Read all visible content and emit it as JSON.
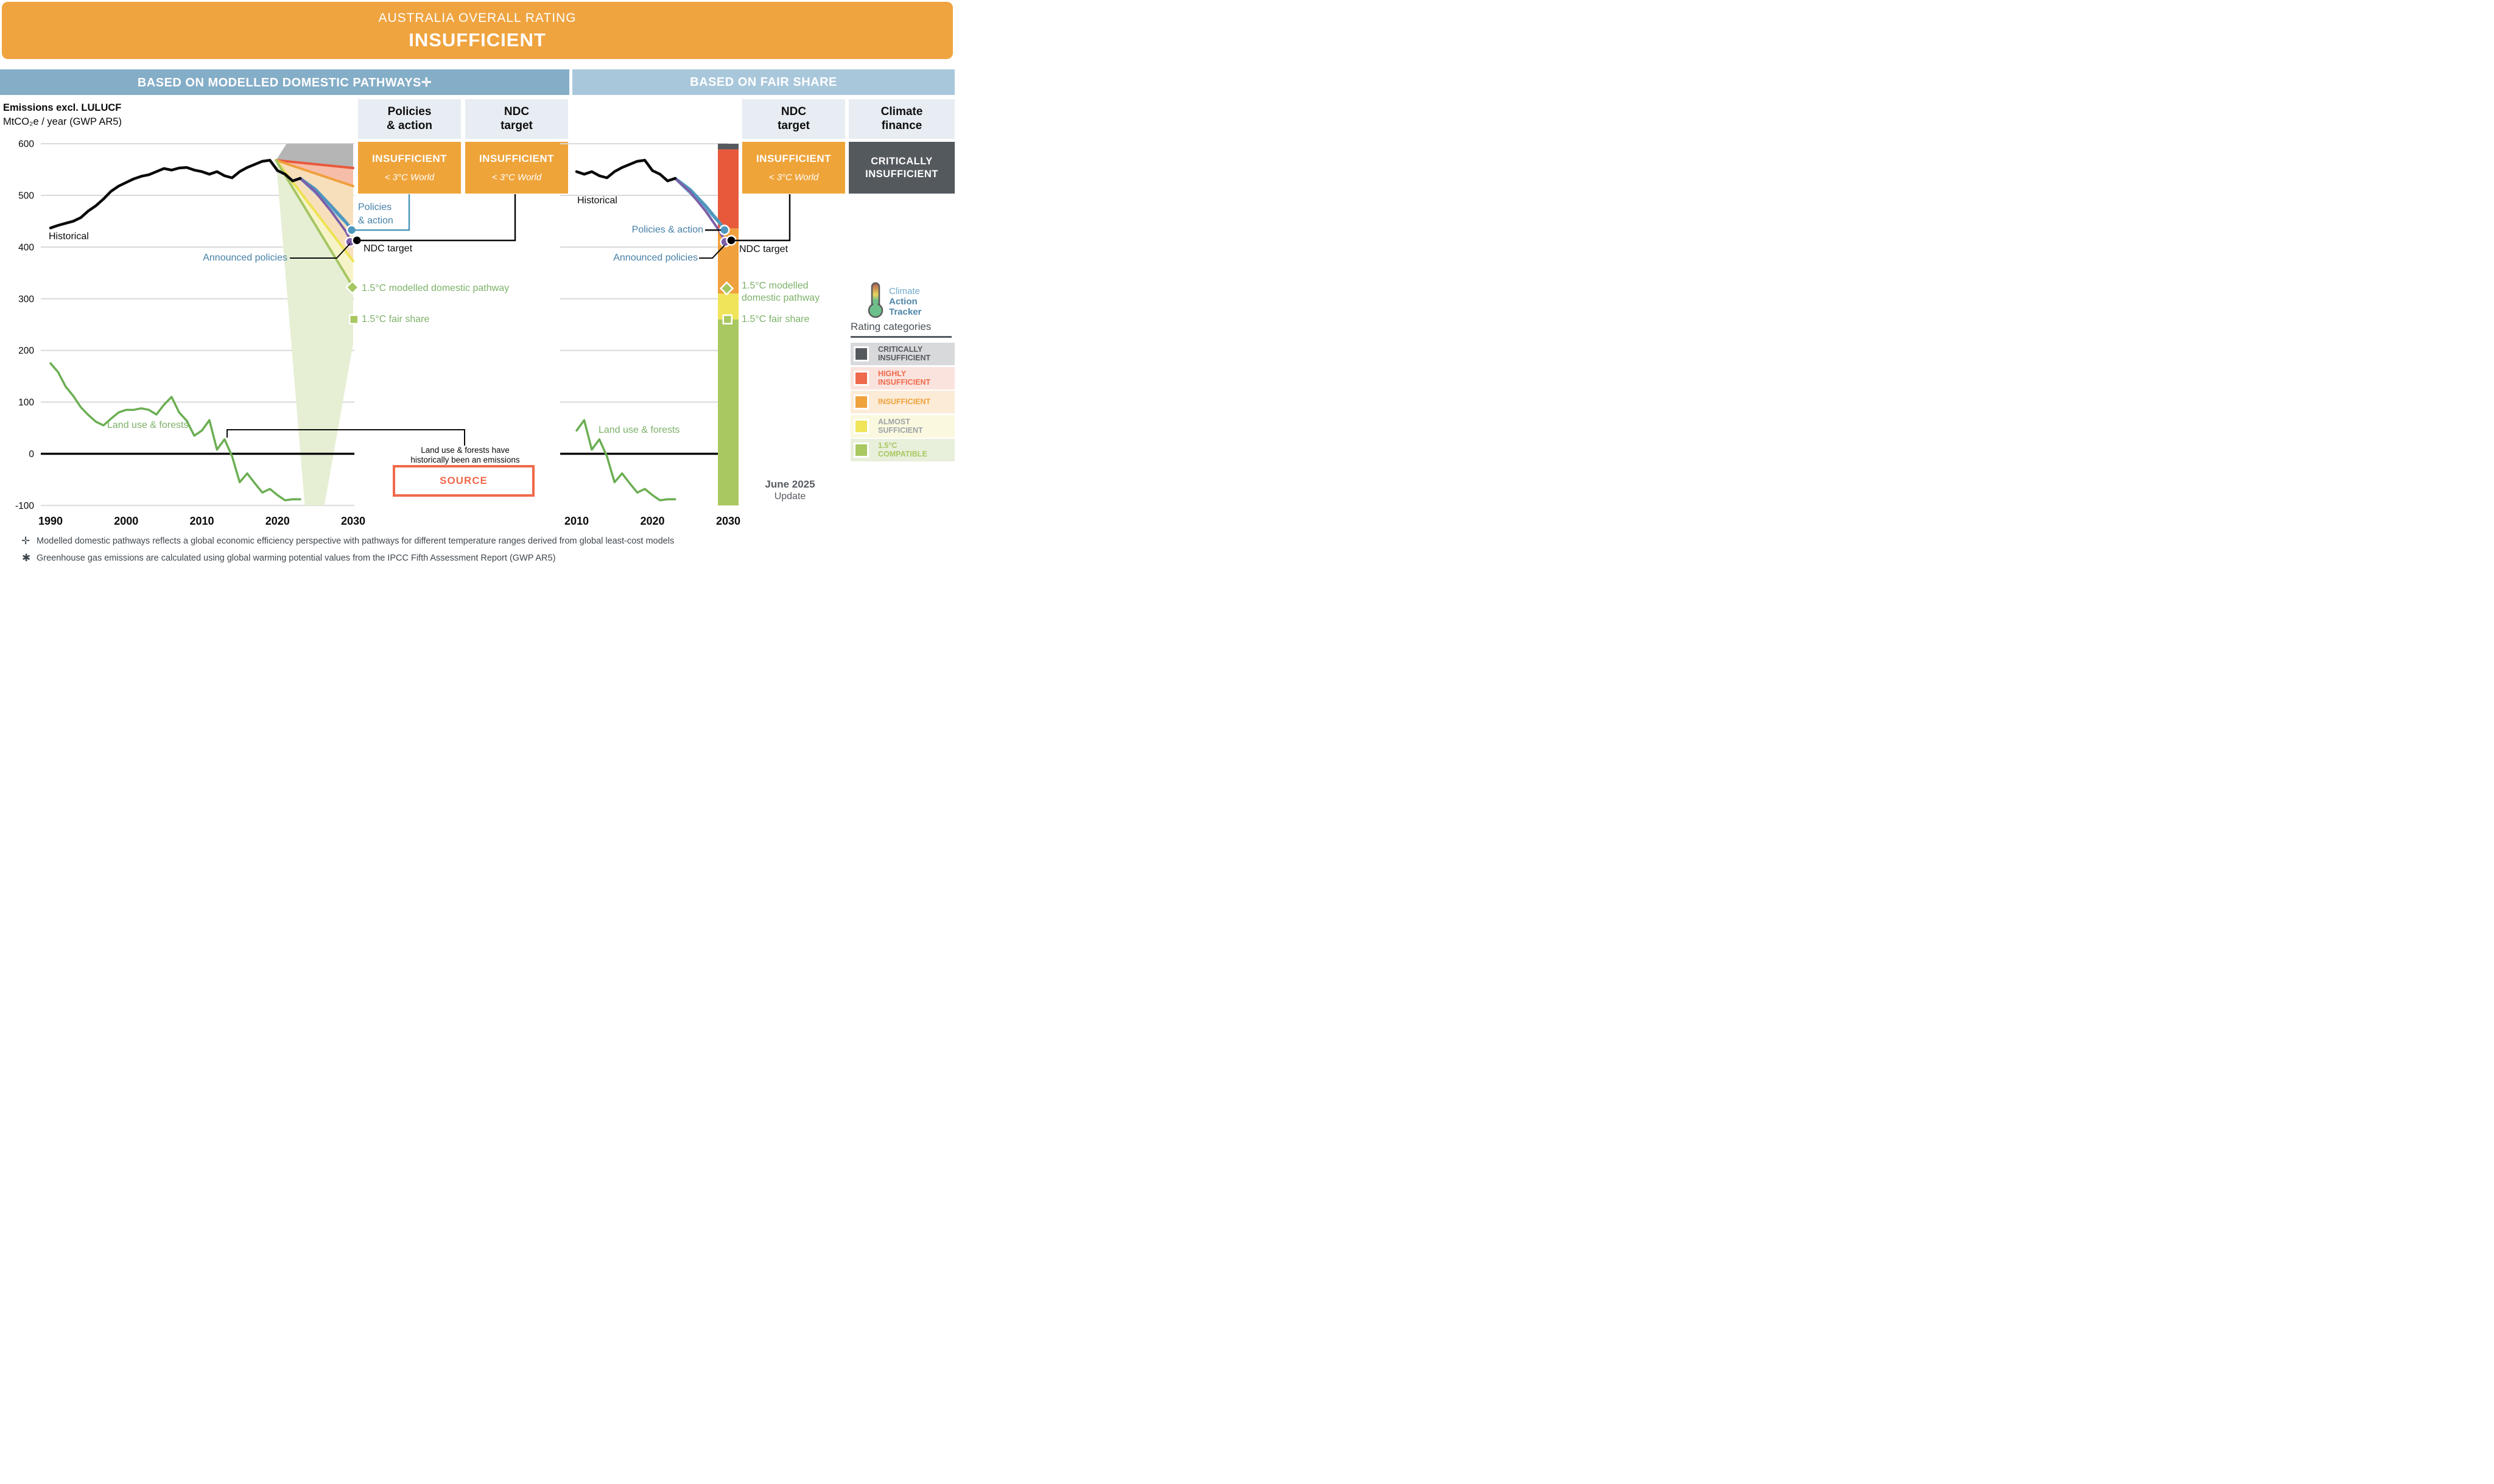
{
  "banner": {
    "kicker": "AUSTRALIA OVERALL RATING",
    "rating": "INSUFFICIENT"
  },
  "panel_headers": {
    "left": "BASED ON MODELLED DOMESTIC PATHWAYS✛",
    "right": "BASED ON FAIR SHARE"
  },
  "axis_caption": {
    "line1": "Emissions excl. LULUCF",
    "line2": "MtCO₂e / year (GWP AR5)"
  },
  "rating_boxes": {
    "policies_action": {
      "t1": "Policies",
      "t2": "& action",
      "rating": "INSUFFICIENT",
      "world": "< 3°C World"
    },
    "ndc_target_left": {
      "t1": "NDC",
      "t2": "target",
      "rating": "INSUFFICIENT",
      "world": "< 3°C World"
    },
    "ndc_target_right": {
      "t1": "NDC",
      "t2": "target",
      "rating": "INSUFFICIENT",
      "world": "< 3°C World"
    },
    "climate_finance": {
      "t1": "Climate",
      "t2": "finance",
      "rating1": "CRITICALLY",
      "rating2": "INSUFFICIENT"
    }
  },
  "annotations": {
    "historical": "Historical",
    "policies_l1": "Policies",
    "policies_l2": "& action",
    "policies_action": "Policies & action",
    "ndc_target": "NDC target",
    "announced": "Announced policies",
    "modelled_full": "1.5°C modelled domestic pathway",
    "modelled_l1": "1.5°C modelled",
    "modelled_l2": "domestic pathway",
    "fair_share": "1.5°C fair share",
    "land_use": "Land use & forests"
  },
  "note": {
    "l1": "Land use & forests have",
    "l2": "historically been an emissions"
  },
  "source_label": "SOURCE",
  "update": {
    "l1": "June 2025",
    "l2": "Update"
  },
  "logo": {
    "t1": "Climate",
    "t2": "Action",
    "t3": "Tracker"
  },
  "legend": {
    "title": "Rating categories",
    "items": [
      {
        "l1": "CRITICALLY",
        "l2": "INSUFFICIENT",
        "swatch": "#54595E",
        "bg": "#D8D9DB",
        "text": "#54595E"
      },
      {
        "l1": "HIGHLY",
        "l2": "INSUFFICIENT",
        "swatch": "#EE6A4D",
        "bg": "#FBE3DD",
        "text": "#EE6A4D"
      },
      {
        "l1": "INSUFFICIENT",
        "l2": "",
        "swatch": "#F0A23C",
        "bg": "#FBEBD7",
        "text": "#F0A23C"
      },
      {
        "l1": "ALMOST",
        "l2": "SUFFICIENT",
        "swatch": "#F0E45B",
        "bg": "#FAF8DE",
        "text": "#9EA3A8"
      },
      {
        "l1": "1.5°C",
        "l2": "COMPATIBLE",
        "swatch": "#A9C862",
        "bg": "#E8EFDA",
        "text": "#A9C862"
      }
    ]
  },
  "footnotes": [
    {
      "sym": "✛",
      "text": "Modelled domestic pathways reflects a global economic efficiency perspective with pathways for different temperature ranges derived from global least-cost models"
    },
    {
      "sym": "✱",
      "text": "Greenhouse gas emissions are calculated using global warming potential values from the IPCC Fifth Assessment Report (GWP AR5)"
    }
  ],
  "chart_data": [
    {
      "type": "line",
      "panel": "based_on_modelled_domestic_pathways",
      "title": "Emissions excl. LULUCF",
      "ylabel": "MtCO₂e / year (GWP AR5)",
      "x_ticks": [
        1990,
        2000,
        2010,
        2020,
        2030
      ],
      "y_ticks": [
        600,
        500,
        400,
        300,
        200,
        100,
        0,
        -100
      ],
      "ylim": [
        -100,
        620
      ],
      "gridline_values": [
        600,
        500,
        400,
        300,
        200,
        100,
        -100
      ],
      "bands": [
        {
          "name": "critically-insufficient-range",
          "color": "#B5B5B5",
          "points": [
            [
              2019.8,
              568
            ],
            [
              2021.2,
              600
            ],
            [
              2030,
              600
            ],
            [
              2030,
              553
            ]
          ]
        },
        {
          "name": "highly-insufficient-range",
          "color": "#F6BDA9",
          "points": [
            [
              2019.8,
              568
            ],
            [
              2030,
              553
            ],
            [
              2030,
              518
            ]
          ]
        },
        {
          "name": "insufficient-range",
          "color": "#F8DFBC",
          "points": [
            [
              2019.8,
              568
            ],
            [
              2030,
              518
            ],
            [
              2030,
              373
            ]
          ]
        },
        {
          "name": "almost-sufficient-range",
          "color": "#F7F3C8",
          "points": [
            [
              2019.8,
              568
            ],
            [
              2030,
              373
            ],
            [
              2030,
              320
            ]
          ]
        },
        {
          "name": "fair-share-range",
          "color": "#E6EFD4",
          "points": [
            [
              2019.8,
              568
            ],
            [
              2030,
              320
            ],
            [
              2030,
              213
            ],
            [
              2026.2,
              -100
            ],
            [
              2023.6,
              -100
            ]
          ]
        }
      ],
      "series": [
        {
          "name": "highly-insufficient-edge",
          "color": "#E8593C",
          "width": 4,
          "points": [
            [
              2019.8,
              568
            ],
            [
              2030,
              553
            ]
          ]
        },
        {
          "name": "insufficient-edge",
          "color": "#F0A03C",
          "width": 4,
          "points": [
            [
              2019.8,
              568
            ],
            [
              2030,
              518
            ]
          ]
        },
        {
          "name": "almost-sufficient-edge",
          "color": "#EDE253",
          "width": 4,
          "points": [
            [
              2019.8,
              568
            ],
            [
              2030,
              373
            ]
          ]
        },
        {
          "name": "modelled-15C-pathway",
          "color": "#A5C763",
          "width": 4,
          "points": [
            [
              2019.8,
              568
            ],
            [
              2029.9,
              325
            ]
          ]
        },
        {
          "name": "policies-action-range",
          "color": "#8BC0DC",
          "width": 5,
          "points": [
            [
              2023,
              533
            ],
            [
              2026,
              492
            ],
            [
              2028,
              462
            ],
            [
              2029.7,
              438
            ]
          ]
        },
        {
          "name": "policies-action",
          "color": "#4E97BE",
          "width": 5,
          "points": [
            [
              2023,
              533
            ],
            [
              2025,
              512
            ],
            [
              2027,
              481
            ],
            [
              2029,
              449
            ],
            [
              2029.8,
              434
            ]
          ]
        },
        {
          "name": "announced-policies",
          "color": "#7D5EA8",
          "width": 4,
          "points": [
            [
              2023,
              533
            ],
            [
              2025,
              507
            ],
            [
              2027,
              471
            ],
            [
              2029,
              431
            ],
            [
              2029.7,
              412
            ]
          ]
        },
        {
          "name": "historical",
          "color": "#0A0A0A",
          "width": 4.5,
          "points": [
            [
              1990,
              437
            ],
            [
              1991,
              442
            ],
            [
              1992,
              446
            ],
            [
              1993,
              450
            ],
            [
              1994,
              457
            ],
            [
              1995,
              470
            ],
            [
              1996,
              480
            ],
            [
              1997,
              493
            ],
            [
              1998,
              508
            ],
            [
              1999,
              518
            ],
            [
              2000,
              525
            ],
            [
              2001,
              532
            ],
            [
              2002,
              537
            ],
            [
              2003,
              540
            ],
            [
              2004,
              546
            ],
            [
              2005,
              552
            ],
            [
              2006,
              549
            ],
            [
              2007,
              553
            ],
            [
              2008,
              554
            ],
            [
              2009,
              549
            ],
            [
              2010,
              546
            ],
            [
              2011,
              541
            ],
            [
              2012,
              546
            ],
            [
              2013,
              538
            ],
            [
              2014,
              534
            ],
            [
              2015,
              546
            ],
            [
              2016,
              554
            ],
            [
              2017,
              560
            ],
            [
              2018,
              566
            ],
            [
              2019,
              568
            ],
            [
              2020,
              548
            ],
            [
              2021,
              541
            ],
            [
              2022,
              528
            ],
            [
              2023,
              533
            ]
          ]
        },
        {
          "name": "land-use-forests",
          "color": "#6BAE52",
          "width": 3.5,
          "points": [
            [
              1990,
              175
            ],
            [
              1991,
              158
            ],
            [
              1992,
              130
            ],
            [
              1993,
              112
            ],
            [
              1994,
              90
            ],
            [
              1995,
              75
            ],
            [
              1996,
              62
            ],
            [
              1997,
              55
            ],
            [
              1998,
              68
            ],
            [
              1999,
              80
            ],
            [
              2000,
              85
            ],
            [
              2001,
              85
            ],
            [
              2002,
              88
            ],
            [
              2003,
              85
            ],
            [
              2004,
              76
            ],
            [
              2005,
              95
            ],
            [
              2006,
              110
            ],
            [
              2007,
              80
            ],
            [
              2008,
              64
            ],
            [
              2009,
              35
            ],
            [
              2010,
              45
            ],
            [
              2011,
              65
            ],
            [
              2012,
              8
            ],
            [
              2013,
              28
            ],
            [
              2014,
              -5
            ],
            [
              2015,
              -55
            ],
            [
              2016,
              -38
            ],
            [
              2017,
              -57
            ],
            [
              2018,
              -75
            ],
            [
              2019,
              -68
            ],
            [
              2020,
              -80
            ],
            [
              2021,
              -90
            ],
            [
              2022,
              -88
            ],
            [
              2023,
              -88
            ]
          ]
        }
      ],
      "markers": [
        {
          "shape": "diamond",
          "name": "modelled-15C-pathway-2030",
          "x": 2029.9,
          "v": 322,
          "color": "#A5C763"
        },
        {
          "shape": "square",
          "name": "fair-share-2030",
          "x": 2030.1,
          "v": 260,
          "color": "#A9C862"
        },
        {
          "shape": "circle",
          "name": "policies-action-2030",
          "x": 2029.8,
          "v": 433,
          "color": "#4E97BE"
        },
        {
          "shape": "circle",
          "name": "announced-policies-2030",
          "x": 2029.6,
          "v": 410,
          "color": "#7D5EA8"
        },
        {
          "shape": "circle",
          "name": "ndc-target-2030",
          "x": 2030.5,
          "v": 413,
          "color": "#000000"
        }
      ]
    },
    {
      "type": "line",
      "panel": "based_on_fair_share",
      "x_ticks": [
        2010,
        2020,
        2030
      ],
      "y_ticks": [],
      "ylim": [
        -100,
        620
      ],
      "gridline_values": [
        600,
        500,
        400,
        300,
        200,
        100
      ],
      "bar": {
        "x": 2030,
        "width": 34,
        "segments": [
          {
            "from": 600,
            "to": 589,
            "color": "#54595E",
            "name": "critically-insufficient"
          },
          {
            "from": 589,
            "to": 436,
            "color": "#E8593C",
            "name": "highly-insufficient"
          },
          {
            "from": 436,
            "to": 310,
            "color": "#F0A03C",
            "name": "insufficient"
          },
          {
            "from": 310,
            "to": 260,
            "color": "#F0E45B",
            "name": "almost-sufficient"
          },
          {
            "from": 260,
            "to": -100,
            "color": "#A9C862",
            "name": "15C-compatible"
          }
        ]
      },
      "series": [
        {
          "name": "policies-action-range",
          "color": "#8BC0DC",
          "width": 5,
          "points": [
            [
              2023,
              533
            ],
            [
              2026,
              490
            ],
            [
              2028,
              460
            ],
            [
              2029.4,
              438
            ]
          ]
        },
        {
          "name": "policies-action",
          "color": "#4E97BE",
          "width": 5,
          "points": [
            [
              2023,
              533
            ],
            [
              2025,
              511
            ],
            [
              2027,
              480
            ],
            [
              2028.8,
              448
            ],
            [
              2029.5,
              434
            ]
          ]
        },
        {
          "name": "announced-policies",
          "color": "#7D5EA8",
          "width": 4,
          "points": [
            [
              2023,
              533
            ],
            [
              2025,
              506
            ],
            [
              2027,
              470
            ],
            [
              2028.8,
              432
            ],
            [
              2029.6,
              412
            ]
          ]
        },
        {
          "name": "historical",
          "color": "#0A0A0A",
          "width": 4.5,
          "points": [
            [
              2010,
              546
            ],
            [
              2011,
              541
            ],
            [
              2012,
              546
            ],
            [
              2013,
              538
            ],
            [
              2014,
              534
            ],
            [
              2015,
              546
            ],
            [
              2016,
              554
            ],
            [
              2017,
              560
            ],
            [
              2018,
              566
            ],
            [
              2019,
              568
            ],
            [
              2020,
              548
            ],
            [
              2021,
              541
            ],
            [
              2022,
              528
            ],
            [
              2023,
              533
            ]
          ]
        },
        {
          "name": "land-use-forests",
          "color": "#6BAE52",
          "width": 3.5,
          "points": [
            [
              2010,
              45
            ],
            [
              2011,
              65
            ],
            [
              2012,
              8
            ],
            [
              2013,
              28
            ],
            [
              2014,
              -5
            ],
            [
              2015,
              -55
            ],
            [
              2016,
              -38
            ],
            [
              2017,
              -57
            ],
            [
              2018,
              -75
            ],
            [
              2019,
              -68
            ],
            [
              2020,
              -80
            ],
            [
              2021,
              -90
            ],
            [
              2022,
              -88
            ],
            [
              2023,
              -88
            ]
          ]
        }
      ],
      "markers": [
        {
          "shape": "diamond",
          "name": "modelled-15C-pathway-2030",
          "x": 2029.8,
          "v": 320,
          "color": "#A5C763"
        },
        {
          "shape": "square",
          "name": "fair-share-2030",
          "x": 2029.9,
          "v": 260,
          "color": "#A9C862"
        },
        {
          "shape": "circle",
          "name": "policies-action-2030",
          "x": 2029.5,
          "v": 433,
          "color": "#4E97BE"
        },
        {
          "shape": "circle",
          "name": "announced-policies-2030",
          "x": 2029.6,
          "v": 410,
          "color": "#7D5EA8"
        },
        {
          "shape": "circle",
          "name": "ndc-target-2030",
          "x": 2030.4,
          "v": 413,
          "color": "#000000"
        }
      ]
    }
  ]
}
